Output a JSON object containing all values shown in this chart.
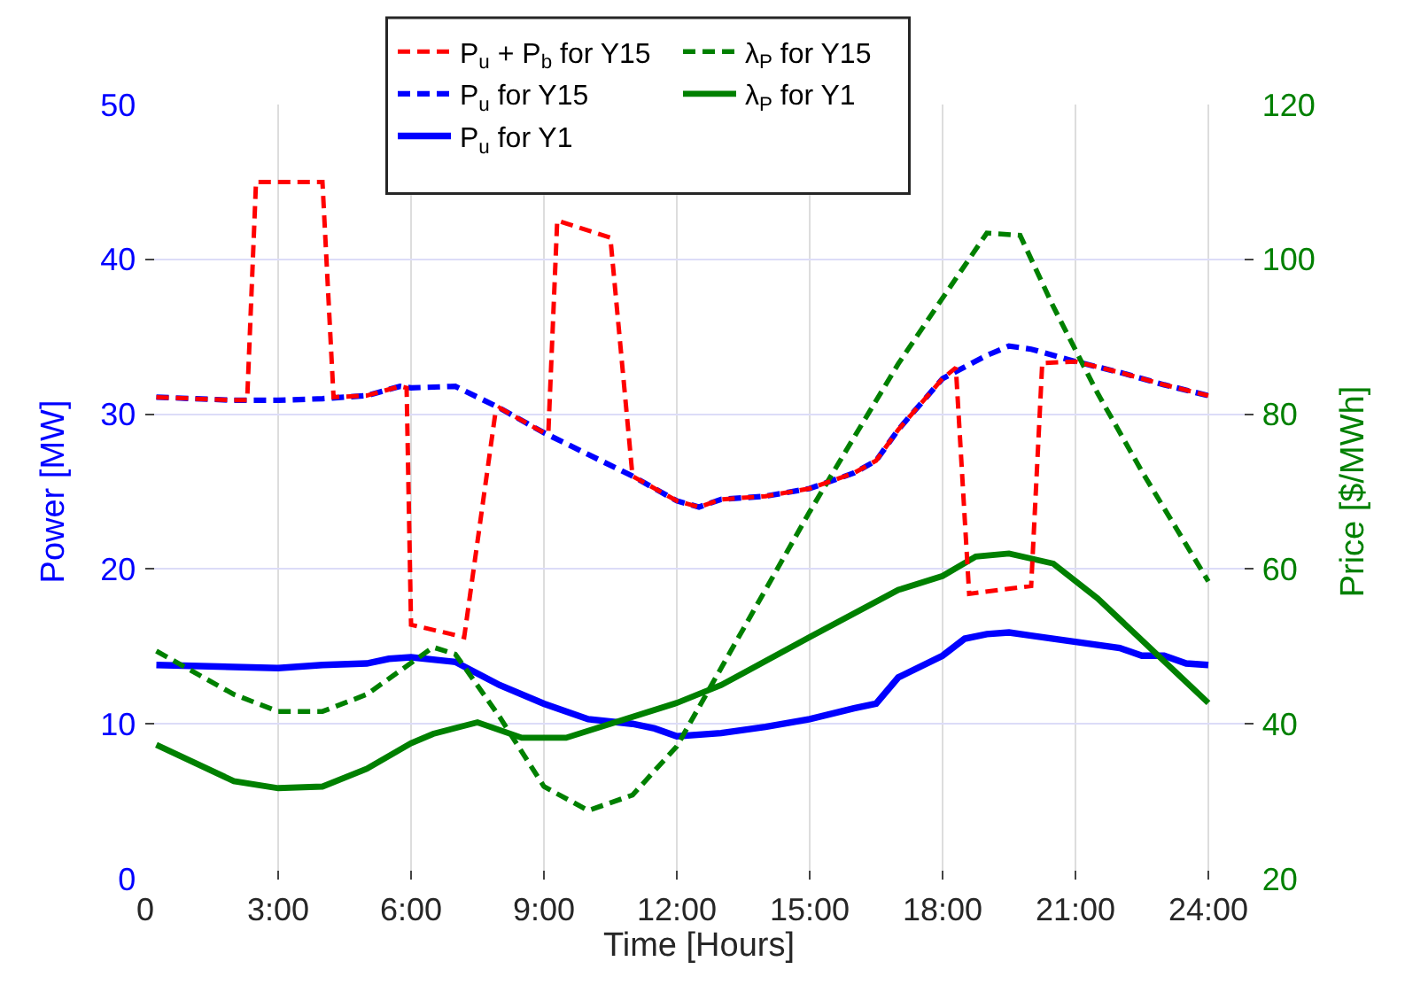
{
  "chart_data": {
    "type": "line",
    "xlabel": "Time [Hours]",
    "ylabel": "Power [MW]",
    "y2label": "Price [$/MWh]",
    "xlim": [
      0,
      25
    ],
    "xticks": [
      0,
      {
        "value": 3,
        "label": "3:00"
      },
      {
        "value": 6,
        "label": "6:00"
      },
      {
        "value": 9,
        "label": "9:00"
      },
      {
        "value": 12,
        "label": "12:00"
      },
      {
        "value": 15,
        "label": "15:00"
      },
      {
        "value": 18,
        "label": "18:00"
      },
      {
        "value": 21,
        "label": "21:00"
      },
      {
        "value": 24,
        "label": "24:00"
      }
    ],
    "ylim": [
      0,
      50
    ],
    "yticks": [
      0,
      10,
      20,
      30,
      40,
      50
    ],
    "y2lim": [
      20,
      120
    ],
    "y2ticks": [
      20,
      40,
      60,
      80,
      100,
      120
    ],
    "grid": true,
    "legend": "top",
    "marker": "none",
    "series": [
      {
        "name": "P$_{u}$ + P$_{b}$ for Y15",
        "color": "#ff0000",
        "line_style": "dashed",
        "x": [
          0.25,
          2,
          2.3,
          2.5,
          4.0,
          4.25,
          5,
          5.75,
          5.9,
          6.0,
          7.2,
          7.9,
          8,
          9,
          9.1,
          9.3,
          10.5,
          11,
          12,
          12.5,
          13,
          14,
          15,
          16,
          16.5,
          17,
          18,
          18.3,
          18.6,
          20,
          20.25,
          21,
          22,
          23,
          24
        ],
        "values": [
          31.1,
          30.9,
          30.9,
          45,
          45,
          31.1,
          31.2,
          31.8,
          31.7,
          16.4,
          15.6,
          30.0,
          30.4,
          28.8,
          28.8,
          42.5,
          41.4,
          26.0,
          24.4,
          24.0,
          24.5,
          24.7,
          25.2,
          26.2,
          27.0,
          29.0,
          32.3,
          33.0,
          18.4,
          18.9,
          33.3,
          33.4,
          32.7,
          31.9,
          31.2
        ]
      },
      {
        "name": "λ$_{P}$ for Y15",
        "color": "#008000",
        "line_style": "dashed",
        "axis": "y2",
        "x": [
          0.25,
          2,
          3,
          4,
          5,
          6.5,
          7,
          8,
          9,
          10,
          11,
          12,
          13,
          14,
          15,
          16,
          17,
          18,
          19,
          19.75,
          20.5,
          21.5,
          22.5,
          24
        ],
        "values": [
          49.4,
          43.8,
          41.6,
          41.6,
          43.8,
          49.9,
          49.0,
          40.9,
          31.9,
          28.8,
          30.8,
          37.1,
          47.2,
          57.3,
          67.4,
          77,
          86.5,
          95,
          103.4,
          103.1,
          93.9,
          82.7,
          72.6,
          58.4
        ]
      },
      {
        "name": "P$_{u}$ for Y15",
        "color": "#0000ff",
        "line_style": "dashed",
        "x": [
          0.25,
          2,
          3,
          4,
          5,
          5.75,
          6,
          7,
          8,
          9,
          10,
          11,
          12,
          12.5,
          13,
          14,
          15,
          16,
          16.5,
          17,
          18,
          19,
          19.5,
          20,
          21,
          22,
          23,
          24
        ],
        "values": [
          31.1,
          30.9,
          30.9,
          31.0,
          31.2,
          31.8,
          31.7,
          31.8,
          30.4,
          28.8,
          27.4,
          26.0,
          24.4,
          24.0,
          24.5,
          24.7,
          25.2,
          26.2,
          27.0,
          29.0,
          32.3,
          33.8,
          34.4,
          34.2,
          33.4,
          32.7,
          31.9,
          31.2
        ]
      },
      {
        "name": "λ$_{P}$ for Y1",
        "color": "#008000",
        "line_style": "solid",
        "axis": "y2",
        "x": [
          0.25,
          2,
          3,
          4,
          5,
          6,
          6.5,
          7.5,
          8.5,
          9.5,
          12,
          13,
          15,
          17,
          18,
          18.75,
          19.5,
          20.5,
          21.5,
          24
        ],
        "values": [
          37.3,
          32.6,
          31.7,
          31.9,
          34.2,
          37.5,
          38.7,
          40.2,
          38.2,
          38.2,
          42.7,
          45.0,
          51.2,
          57.3,
          59.1,
          61.6,
          62.0,
          60.7,
          56.2,
          42.7
        ]
      },
      {
        "name": "P$_{u}$ for Y1",
        "color": "#0000ff",
        "line_style": "solid",
        "x": [
          0.25,
          3,
          4,
          5,
          5.5,
          6,
          7,
          8,
          9,
          10,
          11,
          11.5,
          12,
          13,
          14,
          15,
          16,
          16.5,
          17,
          18,
          18.5,
          19,
          19.5,
          20,
          21,
          22,
          22.5,
          23,
          23.5,
          24
        ],
        "values": [
          13.8,
          13.6,
          13.8,
          13.9,
          14.2,
          14.3,
          14.0,
          12.5,
          11.3,
          10.3,
          10.0,
          9.7,
          9.2,
          9.4,
          9.8,
          10.3,
          11.0,
          11.3,
          13.0,
          14.4,
          15.5,
          15.8,
          15.9,
          15.7,
          15.3,
          14.9,
          14.4,
          14.4,
          13.9,
          13.8
        ]
      }
    ]
  }
}
